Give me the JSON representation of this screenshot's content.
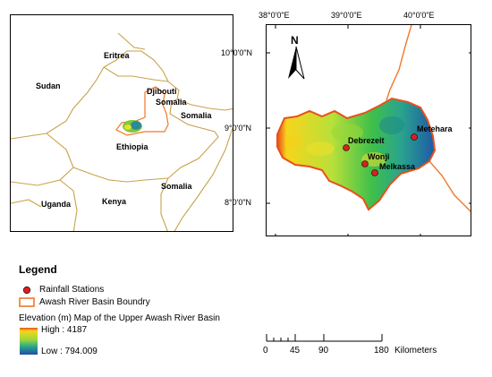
{
  "inset_map": {
    "labels": {
      "sudan": "Sudan",
      "eritrea": "Eritrea",
      "djibouti": "Djibouti",
      "somalia_north": "Somalia",
      "somalia_east": "Somalia",
      "ethiopia": "Ethiopia",
      "uganda": "Uganda",
      "kenya": "Kenya",
      "somalia_south": "Somalia"
    }
  },
  "main_map": {
    "longitudes": [
      "38°0'0\"E",
      "39°0'0\"E",
      "40°0'0\"E"
    ],
    "latitudes": [
      "10°0'0\"N",
      "9°0'0\"N",
      "8°0'0\"N"
    ],
    "north_label": "N",
    "stations": [
      {
        "name": "Debrezeit"
      },
      {
        "name": "Wonji"
      },
      {
        "name": "Melkassa"
      },
      {
        "name": "Metehara"
      }
    ],
    "colors": {
      "station": "#d92020",
      "boundary": "#f0782a"
    }
  },
  "legend": {
    "title": "Legend",
    "rainfall_label": "Rainfall Stations",
    "boundary_label": "Awash River Basin Boundry",
    "elevation_title": "Elevation (m) Map of the Upper Awash River Basin",
    "high_label": "High : 4187",
    "low_label": "Low : 794.009"
  },
  "scale_bar": {
    "ticks": [
      "0",
      "45",
      "90",
      "180"
    ],
    "unit": "Kilometers"
  }
}
